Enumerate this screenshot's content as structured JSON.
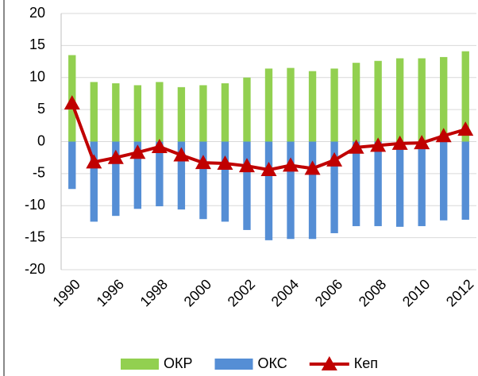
{
  "chart_data": {
    "type": "bar_line",
    "categories": [
      "1990",
      null,
      "1996",
      null,
      "1998",
      null,
      "2000",
      null,
      "2002",
      null,
      "2004",
      null,
      "2006",
      null,
      "2008",
      null,
      "2010",
      null,
      "2012"
    ],
    "series": [
      {
        "name": "ОКР",
        "type": "bar",
        "color": "#92d050",
        "values": [
          13.5,
          9.3,
          9.1,
          8.8,
          9.3,
          8.5,
          8.8,
          9.1,
          10.0,
          11.4,
          11.5,
          11.0,
          11.4,
          12.3,
          12.6,
          13.0,
          13.0,
          13.2,
          14.1
        ]
      },
      {
        "name": "ОКС",
        "type": "bar",
        "color": "#558ed5",
        "values": [
          -7.4,
          -12.5,
          -11.6,
          -10.5,
          -10.1,
          -10.6,
          -12.1,
          -12.5,
          -13.8,
          -15.4,
          -15.2,
          -15.2,
          -14.3,
          -13.2,
          -13.2,
          -13.3,
          -13.2,
          -12.3,
          -12.2
        ]
      },
      {
        "name": "Кеп",
        "type": "line",
        "color": "#c00000",
        "values": [
          6.0,
          -3.2,
          -2.5,
          -1.7,
          -0.8,
          -2.1,
          -3.3,
          -3.4,
          -3.8,
          -4.4,
          -3.7,
          -4.2,
          -2.9,
          -0.9,
          -0.6,
          -0.3,
          -0.2,
          0.9,
          1.9
        ]
      }
    ],
    "ylim": [
      -20,
      20
    ],
    "yticks": [
      -20,
      -15,
      -10,
      -5,
      0,
      5,
      10,
      15,
      20
    ],
    "grid": true,
    "legend": "bottom"
  }
}
